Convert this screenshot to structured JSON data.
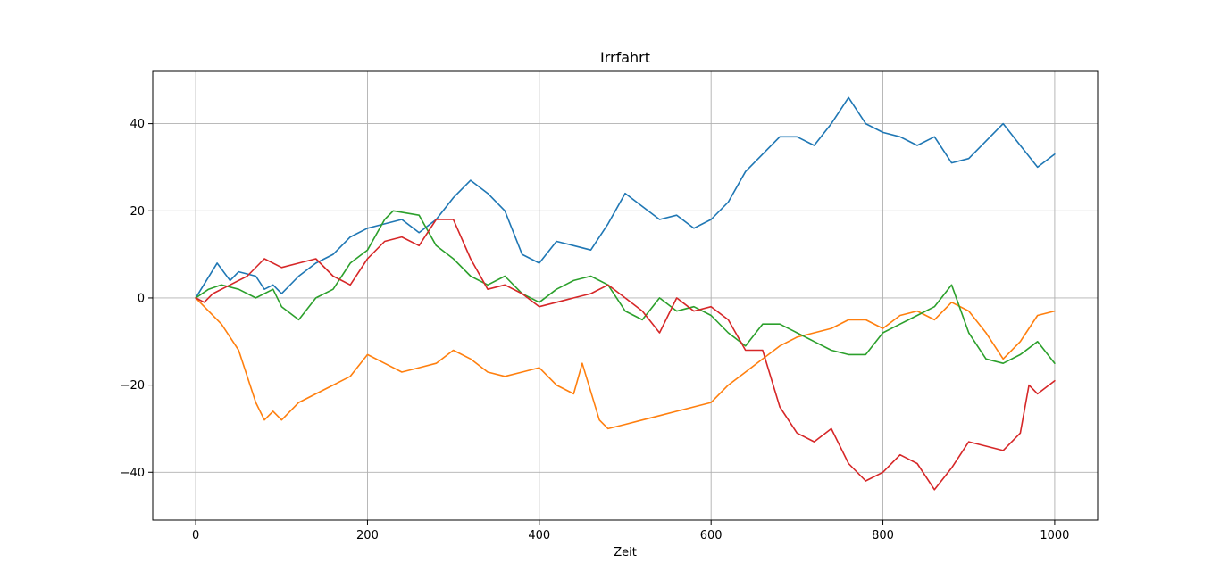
{
  "chart_data": {
    "type": "line",
    "title": "Irrfahrt",
    "xlabel": "Zeit",
    "ylabel": "",
    "xlim": [
      -50,
      1050
    ],
    "ylim": [
      -51,
      52
    ],
    "xticks": [
      0,
      200,
      400,
      600,
      800,
      1000
    ],
    "yticks": [
      -40,
      -20,
      0,
      20,
      40
    ],
    "xtick_labels": [
      "0",
      "200",
      "400",
      "600",
      "800",
      "1000"
    ],
    "ytick_labels": [
      "−40",
      "−20",
      "0",
      "20",
      "40"
    ],
    "grid": true,
    "legend": "none",
    "series": [
      {
        "color": "#1f77b4",
        "x": [
          0,
          25,
          40,
          50,
          70,
          80,
          90,
          100,
          120,
          140,
          160,
          180,
          200,
          220,
          240,
          260,
          280,
          300,
          320,
          340,
          360,
          380,
          400,
          420,
          440,
          460,
          480,
          500,
          520,
          540,
          560,
          580,
          600,
          620,
          640,
          660,
          680,
          700,
          720,
          740,
          760,
          780,
          800,
          820,
          840,
          860,
          880,
          900,
          920,
          940,
          960,
          980,
          1000
        ],
        "y": [
          0,
          8,
          4,
          6,
          5,
          2,
          3,
          1,
          5,
          8,
          10,
          14,
          16,
          17,
          18,
          15,
          18,
          23,
          27,
          24,
          20,
          10,
          8,
          13,
          12,
          11,
          17,
          24,
          21,
          18,
          19,
          16,
          18,
          22,
          29,
          33,
          37,
          37,
          35,
          40,
          46,
          40,
          38,
          37,
          35,
          37,
          31,
          32,
          36,
          40,
          35,
          30,
          33
        ]
      },
      {
        "color": "#ff7f0e",
        "x": [
          0,
          15,
          30,
          50,
          70,
          80,
          90,
          100,
          120,
          140,
          160,
          180,
          200,
          220,
          240,
          260,
          280,
          300,
          320,
          340,
          360,
          380,
          400,
          420,
          440,
          450,
          470,
          480,
          500,
          520,
          540,
          560,
          580,
          600,
          620,
          640,
          660,
          680,
          700,
          720,
          740,
          760,
          780,
          800,
          820,
          840,
          860,
          880,
          900,
          920,
          940,
          960,
          980,
          1000
        ],
        "y": [
          0,
          -3,
          -6,
          -12,
          -24,
          -28,
          -26,
          -28,
          -24,
          -22,
          -20,
          -18,
          -13,
          -15,
          -17,
          -16,
          -15,
          -12,
          -14,
          -17,
          -18,
          -17,
          -16,
          -20,
          -22,
          -15,
          -28,
          -30,
          -29,
          -28,
          -27,
          -26,
          -25,
          -24,
          -20,
          -17,
          -14,
          -11,
          -9,
          -8,
          -7,
          -5,
          -5,
          -7,
          -4,
          -3,
          -5,
          -1,
          -3,
          -8,
          -14,
          -10,
          -4,
          -3
        ]
      },
      {
        "color": "#2ca02c",
        "x": [
          0,
          15,
          30,
          50,
          70,
          90,
          100,
          120,
          140,
          160,
          180,
          200,
          220,
          230,
          260,
          280,
          300,
          320,
          340,
          360,
          380,
          400,
          420,
          440,
          460,
          480,
          500,
          520,
          540,
          560,
          580,
          600,
          620,
          640,
          660,
          680,
          700,
          720,
          740,
          760,
          780,
          800,
          820,
          840,
          860,
          880,
          900,
          920,
          940,
          960,
          980,
          1000
        ],
        "y": [
          0,
          2,
          3,
          2,
          0,
          2,
          -2,
          -5,
          0,
          2,
          8,
          11,
          18,
          20,
          19,
          12,
          9,
          5,
          3,
          5,
          1,
          -1,
          2,
          4,
          5,
          3,
          -3,
          -5,
          0,
          -3,
          -2,
          -4,
          -8,
          -11,
          -6,
          -6,
          -8,
          -10,
          -12,
          -13,
          -13,
          -8,
          -6,
          -4,
          -2,
          3,
          -8,
          -14,
          -15,
          -13,
          -10,
          -15
        ]
      },
      {
        "color": "#d62728",
        "x": [
          0,
          10,
          20,
          40,
          60,
          80,
          100,
          120,
          140,
          160,
          180,
          200,
          220,
          240,
          260,
          280,
          300,
          320,
          340,
          360,
          380,
          400,
          420,
          440,
          460,
          480,
          500,
          520,
          540,
          560,
          580,
          600,
          620,
          640,
          660,
          680,
          700,
          720,
          740,
          760,
          780,
          800,
          820,
          840,
          860,
          880,
          900,
          920,
          940,
          960,
          970,
          980,
          1000
        ],
        "y": [
          0,
          -1,
          1,
          3,
          5,
          9,
          7,
          8,
          9,
          5,
          3,
          9,
          13,
          14,
          12,
          18,
          18,
          9,
          2,
          3,
          1,
          -2,
          -1,
          0,
          1,
          3,
          0,
          -3,
          -8,
          0,
          -3,
          -2,
          -5,
          -12,
          -12,
          -25,
          -31,
          -33,
          -30,
          -38,
          -42,
          -40,
          -36,
          -38,
          -44,
          -39,
          -33,
          -34,
          -35,
          -31,
          -20,
          -22,
          -19
        ]
      }
    ]
  }
}
